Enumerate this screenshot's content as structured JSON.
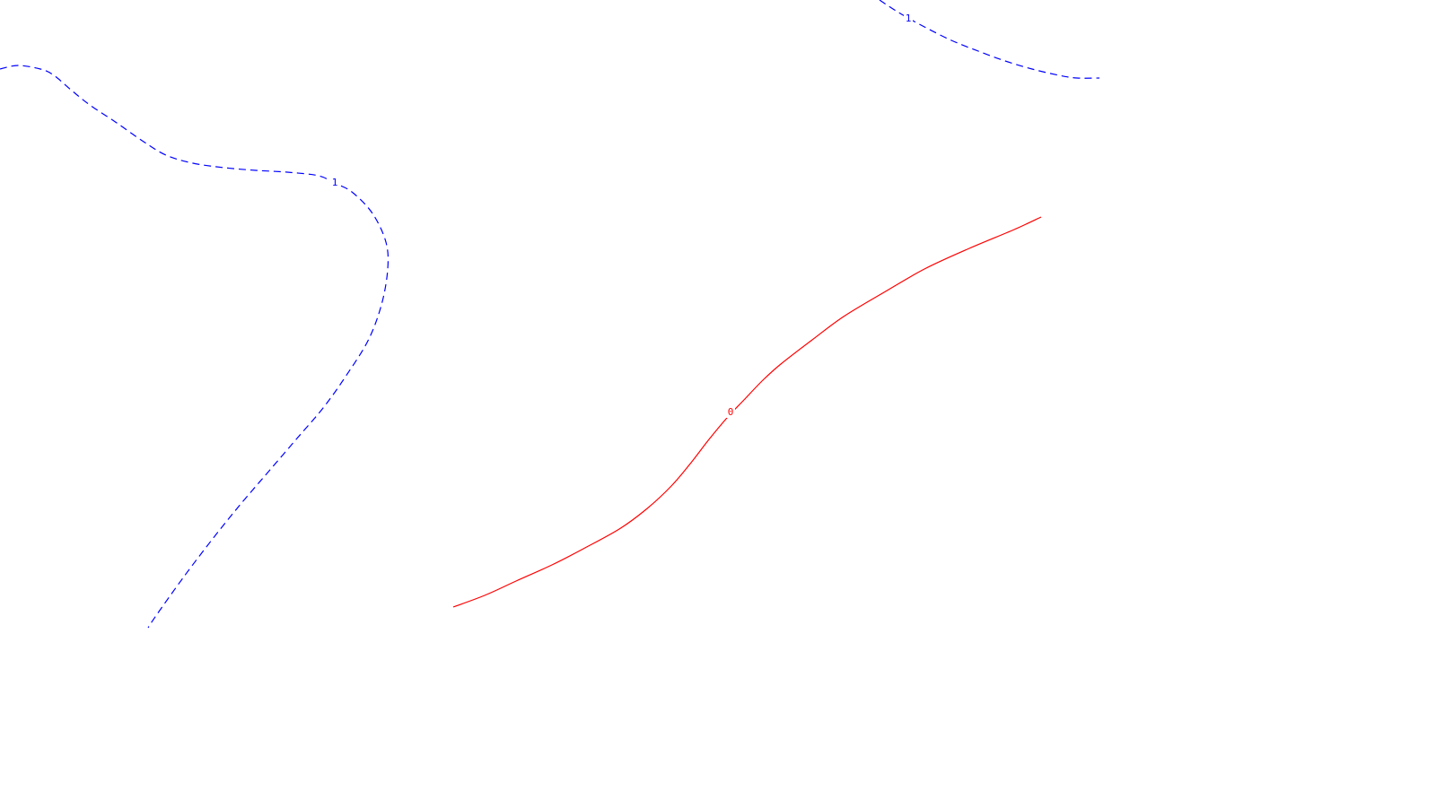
{
  "chart_data": {
    "type": "contour",
    "title": "",
    "xlabel": "",
    "ylabel": "",
    "grid": false,
    "legend": "none",
    "contours": [
      {
        "level": "1",
        "label": "1",
        "color": "#0000ff",
        "style": "dashed",
        "segments": 2
      },
      {
        "level": "0",
        "label": "0",
        "color": "#ff0000",
        "style": "solid",
        "segments": 1
      }
    ]
  }
}
